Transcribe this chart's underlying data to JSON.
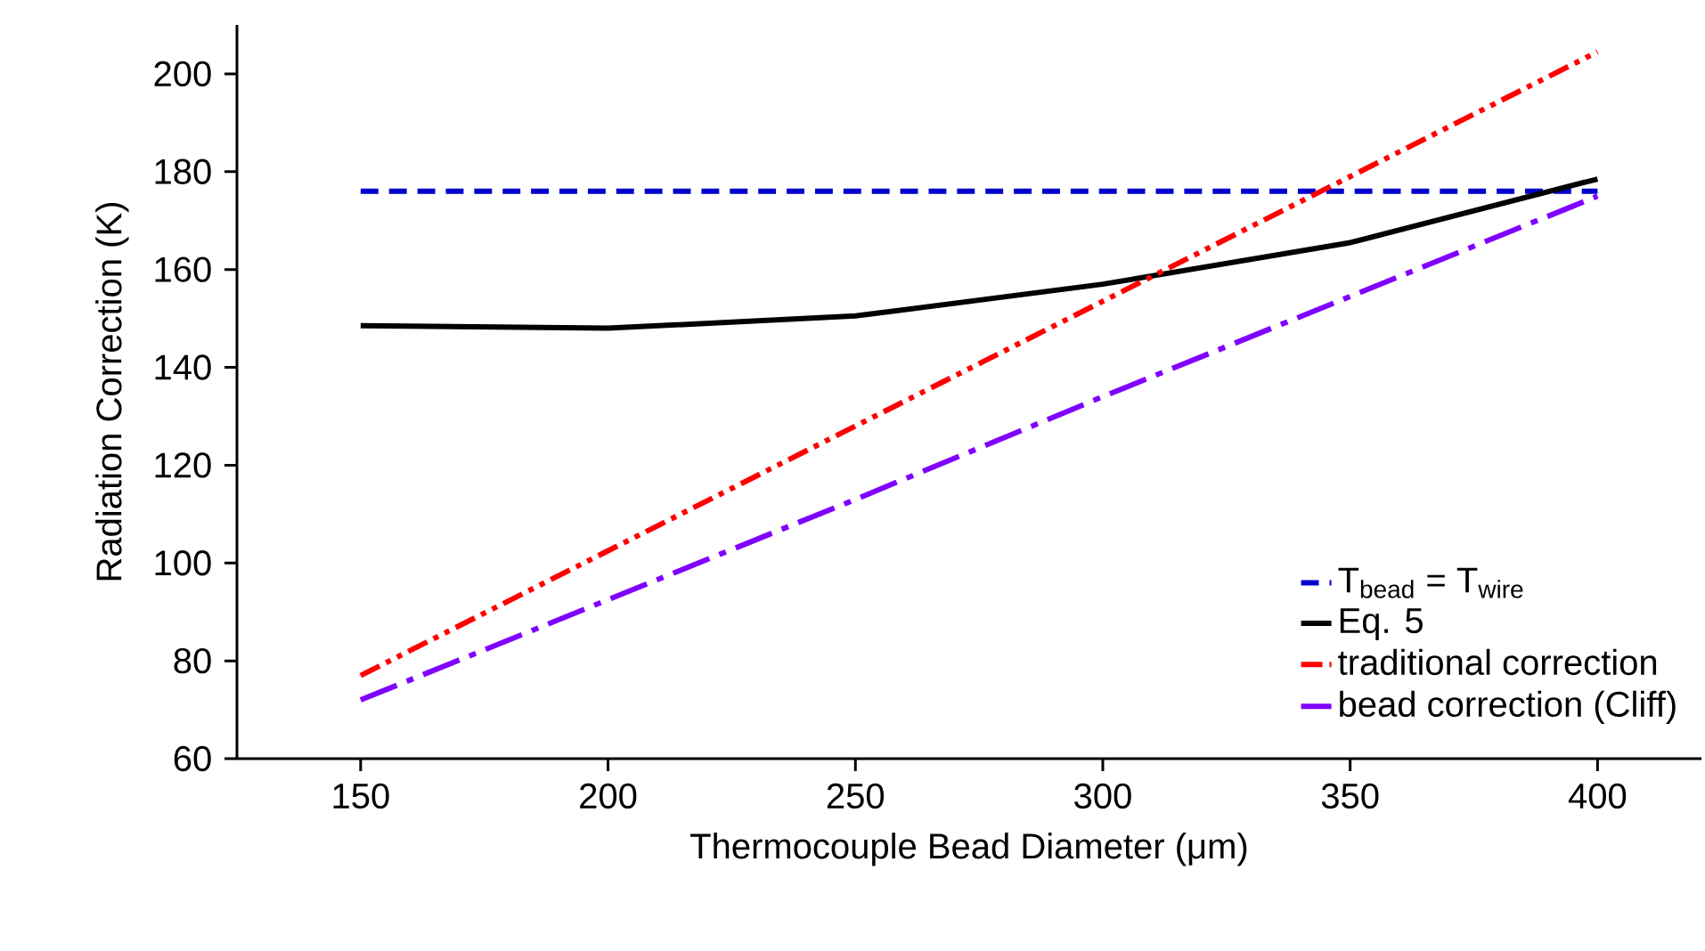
{
  "chart_data": {
    "type": "line",
    "xlabel": "Thermocouple Bead Diameter (μm)",
    "ylabel": "Radiation Correction (K)",
    "x": [
      150,
      200,
      250,
      300,
      350,
      400
    ],
    "series": [
      {
        "name": "T$_{bead}$ = T$_{wire}$",
        "color": "#0000cc",
        "line_style": "dashed",
        "values": [
          176,
          176,
          176,
          176,
          176,
          176
        ]
      },
      {
        "name": "Eq. 5",
        "color": "#000000",
        "line_style": "solid",
        "values": [
          148.5,
          148,
          150.5,
          157,
          165.5,
          178.5
        ]
      },
      {
        "name": "traditional correction",
        "color": "#ff0000",
        "line_style": "dashdotdot",
        "values": [
          77,
          102.5,
          128,
          153.5,
          179,
          204.5
        ]
      },
      {
        "name": "bead correction (Cliff)",
        "color": "#7f00ff",
        "line_style": "dashdot",
        "values": [
          72,
          92.5,
          113,
          134,
          154.5,
          175
        ]
      }
    ],
    "xlim": [
      125,
      421
    ],
    "ylim": [
      60,
      210
    ],
    "xticks": [
      150,
      200,
      250,
      300,
      350,
      400
    ],
    "yticks": [
      60,
      80,
      100,
      120,
      140,
      160,
      180,
      200
    ],
    "grid": false,
    "legend": "bottom right",
    "marker": "none"
  }
}
